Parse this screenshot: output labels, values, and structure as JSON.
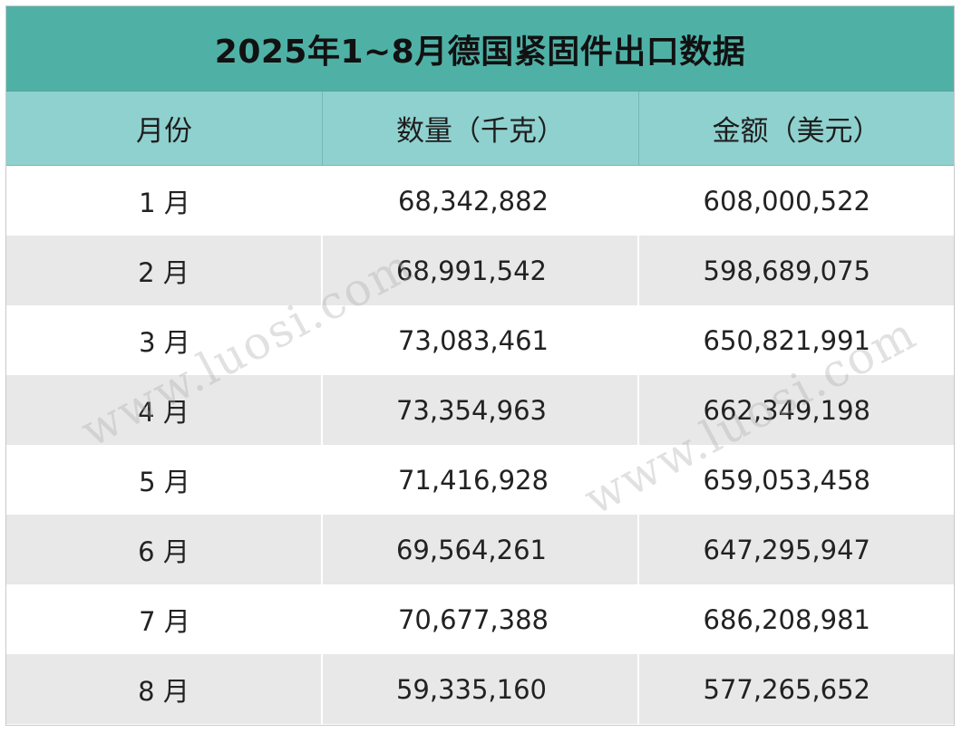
{
  "table": {
    "title": "2025年1~8月德国紧固件出口数据",
    "headers": [
      "月份",
      "数量（千克）",
      "金额（美元）"
    ],
    "rows": [
      {
        "month": "1 月",
        "quantity": "68,342,882",
        "amount": "608,000,522"
      },
      {
        "month": "2 月",
        "quantity": "68,991,542",
        "amount": "598,689,075"
      },
      {
        "month": "3 月",
        "quantity": "73,083,461",
        "amount": "650,821,991"
      },
      {
        "month": "4 月",
        "quantity": "73,354,963",
        "amount": "662,349,198"
      },
      {
        "month": "5 月",
        "quantity": "71,416,928",
        "amount": "659,053,458"
      },
      {
        "month": "6 月",
        "quantity": "69,564,261",
        "amount": "647,295,947"
      },
      {
        "month": "7 月",
        "quantity": "70,677,388",
        "amount": "686,208,981"
      },
      {
        "month": "8 月",
        "quantity": "59,335,160",
        "amount": "577,265,652"
      }
    ]
  },
  "watermarks": [
    "www.luosi.com",
    "www.luosi.com"
  ],
  "colors": {
    "title_bg": "#4fb1a6",
    "header_bg": "#8fd1cf",
    "stripe_bg": "#e8e8e8"
  }
}
